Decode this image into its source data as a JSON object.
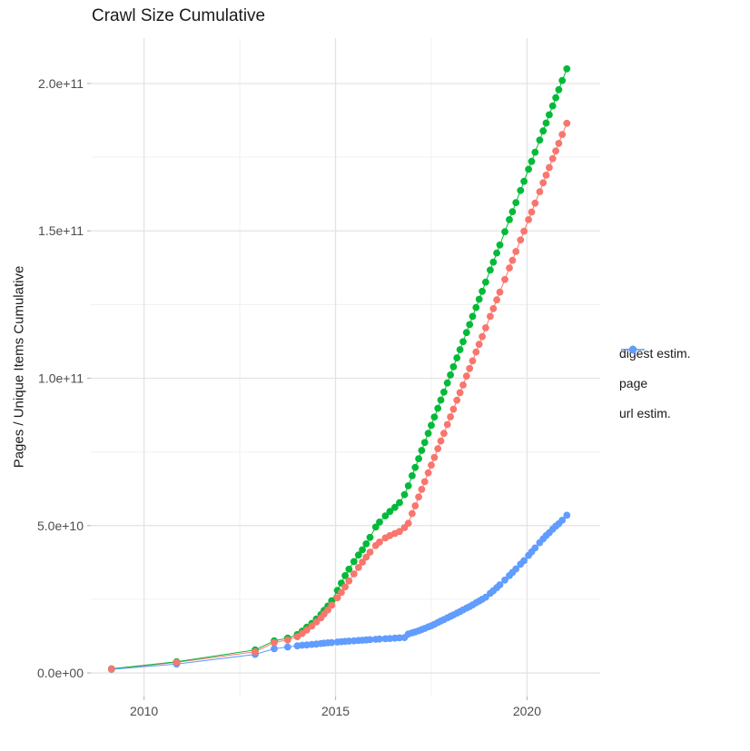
{
  "page": {
    "title": "Crawl Size Cumulative"
  },
  "chart_data": {
    "type": "line",
    "title": "Crawl Size Cumulative",
    "xlabel": "",
    "ylabel": "Pages / Unique Items Cumulative",
    "grid": true,
    "legend_position": "right",
    "value_unit_note": "y values stored in billions (1e9) of pages / unique items",
    "x_axis": {
      "lim": [
        2008.61,
        2021.91
      ],
      "major_ticks": [
        {
          "value": 2010,
          "label": "2010"
        },
        {
          "value": 2015,
          "label": "2015"
        },
        {
          "value": 2020,
          "label": "2020"
        }
      ],
      "minor_ticks": [
        2012.5,
        2017.5
      ]
    },
    "y_axis": {
      "lim_billions": [
        -8,
        215.4
      ],
      "major_ticks": [
        {
          "value_billions": 0,
          "label": "0.0e+00"
        },
        {
          "value_billions": 50,
          "label": "5.0e+10"
        },
        {
          "value_billions": 100,
          "label": "1.0e+11"
        },
        {
          "value_billions": 150,
          "label": "1.5e+11"
        },
        {
          "value_billions": 200,
          "label": "2.0e+11"
        }
      ],
      "minor_ticks_billions": [
        25,
        75,
        125,
        175
      ]
    },
    "colors": {
      "digest": "#F8766D",
      "page": "#00BA38",
      "url": "#619CFF"
    },
    "series": [
      {
        "name": "digest estim.",
        "color": "#F8766D",
        "points_year_billions": [
          [
            2009.15,
            1.3
          ],
          [
            2010.85,
            3.6
          ],
          [
            2012.9,
            7.2
          ],
          [
            2013.4,
            10.3
          ],
          [
            2013.75,
            11.2
          ],
          [
            2014.0,
            12.3
          ],
          [
            2014.13,
            13.4
          ],
          [
            2014.25,
            14.6
          ],
          [
            2014.38,
            15.9
          ],
          [
            2014.5,
            17.3
          ],
          [
            2014.62,
            18.7
          ],
          [
            2014.7,
            20.0
          ],
          [
            2014.8,
            21.4
          ],
          [
            2014.9,
            23.0
          ],
          [
            2015.05,
            25.5
          ],
          [
            2015.15,
            27.3
          ],
          [
            2015.25,
            29.2
          ],
          [
            2015.35,
            31.2
          ],
          [
            2015.48,
            33.6
          ],
          [
            2015.6,
            35.8
          ],
          [
            2015.7,
            37.6
          ],
          [
            2015.8,
            39.3
          ],
          [
            2015.9,
            41.0
          ],
          [
            2016.05,
            43.2
          ],
          [
            2016.15,
            44.4
          ],
          [
            2016.3,
            45.8
          ],
          [
            2016.42,
            46.6
          ],
          [
            2016.55,
            47.3
          ],
          [
            2016.67,
            48.0
          ],
          [
            2016.8,
            49.3
          ],
          [
            2016.9,
            50.8
          ],
          [
            2017.0,
            54.1
          ],
          [
            2017.08,
            56.7
          ],
          [
            2017.17,
            59.7
          ],
          [
            2017.25,
            62.3
          ],
          [
            2017.33,
            64.9
          ],
          [
            2017.42,
            67.9
          ],
          [
            2017.5,
            70.5
          ],
          [
            2017.58,
            73.1
          ],
          [
            2017.67,
            76.1
          ],
          [
            2017.75,
            78.7
          ],
          [
            2017.83,
            81.3
          ],
          [
            2017.92,
            84.3
          ],
          [
            2018.0,
            86.9
          ],
          [
            2018.08,
            89.5
          ],
          [
            2018.17,
            92.5
          ],
          [
            2018.25,
            95.1
          ],
          [
            2018.33,
            97.7
          ],
          [
            2018.42,
            100.7
          ],
          [
            2018.5,
            103.3
          ],
          [
            2018.58,
            105.9
          ],
          [
            2018.67,
            108.9
          ],
          [
            2018.75,
            111.5
          ],
          [
            2018.83,
            114.1
          ],
          [
            2018.92,
            117.1
          ],
          [
            2019.04,
            121.0
          ],
          [
            2019.12,
            123.6
          ],
          [
            2019.21,
            126.6
          ],
          [
            2019.29,
            129.2
          ],
          [
            2019.42,
            133.5
          ],
          [
            2019.54,
            137.4
          ],
          [
            2019.62,
            140.0
          ],
          [
            2019.71,
            143.0
          ],
          [
            2019.83,
            146.9
          ],
          [
            2019.92,
            149.9
          ],
          [
            2020.04,
            153.8
          ],
          [
            2020.12,
            156.4
          ],
          [
            2020.21,
            159.4
          ],
          [
            2020.33,
            163.3
          ],
          [
            2020.42,
            166.3
          ],
          [
            2020.5,
            168.9
          ],
          [
            2020.58,
            171.5
          ],
          [
            2020.67,
            174.5
          ],
          [
            2020.75,
            177.1
          ],
          [
            2020.83,
            179.7
          ],
          [
            2020.92,
            182.7
          ],
          [
            2021.04,
            186.5
          ]
        ]
      },
      {
        "name": "page",
        "color": "#00BA38",
        "points_year_billions": [
          [
            2009.15,
            1.4
          ],
          [
            2010.85,
            3.8
          ],
          [
            2012.9,
            7.8
          ],
          [
            2013.4,
            10.9
          ],
          [
            2013.75,
            11.8
          ],
          [
            2014.0,
            13.0
          ],
          [
            2014.13,
            14.2
          ],
          [
            2014.25,
            15.5
          ],
          [
            2014.38,
            16.8
          ],
          [
            2014.5,
            18.3
          ],
          [
            2014.62,
            19.8
          ],
          [
            2014.7,
            21.2
          ],
          [
            2014.8,
            22.7
          ],
          [
            2014.9,
            24.5
          ],
          [
            2015.05,
            28.0
          ],
          [
            2015.15,
            30.5
          ],
          [
            2015.25,
            33.0
          ],
          [
            2015.35,
            35.2
          ],
          [
            2015.48,
            37.8
          ],
          [
            2015.6,
            40.0
          ],
          [
            2015.7,
            41.8
          ],
          [
            2015.8,
            43.8
          ],
          [
            2015.9,
            46.0
          ],
          [
            2016.05,
            49.5
          ],
          [
            2016.15,
            51.2
          ],
          [
            2016.3,
            53.3
          ],
          [
            2016.42,
            54.8
          ],
          [
            2016.55,
            56.2
          ],
          [
            2016.67,
            57.8
          ],
          [
            2016.8,
            60.5
          ],
          [
            2016.9,
            63.5
          ],
          [
            2017.0,
            66.9
          ],
          [
            2017.08,
            69.7
          ],
          [
            2017.17,
            72.7
          ],
          [
            2017.25,
            75.5
          ],
          [
            2017.33,
            78.2
          ],
          [
            2017.42,
            81.3
          ],
          [
            2017.5,
            84.0
          ],
          [
            2017.58,
            86.8
          ],
          [
            2017.67,
            89.8
          ],
          [
            2017.75,
            92.6
          ],
          [
            2017.83,
            95.3
          ],
          [
            2017.92,
            98.4
          ],
          [
            2018.0,
            101.1
          ],
          [
            2018.08,
            103.9
          ],
          [
            2018.17,
            106.9
          ],
          [
            2018.25,
            109.7
          ],
          [
            2018.33,
            112.4
          ],
          [
            2018.42,
            115.5
          ],
          [
            2018.5,
            118.2
          ],
          [
            2018.58,
            121.0
          ],
          [
            2018.67,
            124.0
          ],
          [
            2018.75,
            126.8
          ],
          [
            2018.83,
            129.5
          ],
          [
            2018.92,
            132.6
          ],
          [
            2019.04,
            136.7
          ],
          [
            2019.12,
            139.4
          ],
          [
            2019.21,
            142.5
          ],
          [
            2019.29,
            145.2
          ],
          [
            2019.42,
            149.7
          ],
          [
            2019.54,
            153.8
          ],
          [
            2019.62,
            156.5
          ],
          [
            2019.71,
            159.6
          ],
          [
            2019.83,
            163.7
          ],
          [
            2019.92,
            166.8
          ],
          [
            2020.04,
            170.9
          ],
          [
            2020.12,
            173.6
          ],
          [
            2020.21,
            176.7
          ],
          [
            2020.33,
            180.8
          ],
          [
            2020.42,
            183.9
          ],
          [
            2020.5,
            186.6
          ],
          [
            2020.58,
            189.4
          ],
          [
            2020.67,
            192.4
          ],
          [
            2020.75,
            195.2
          ],
          [
            2020.83,
            197.9
          ],
          [
            2020.92,
            201.0
          ],
          [
            2021.04,
            205.0
          ]
        ]
      },
      {
        "name": "url estim.",
        "color": "#619CFF",
        "points_year_billions": [
          [
            2009.15,
            1.2
          ],
          [
            2010.85,
            3.0
          ],
          [
            2012.9,
            6.3
          ],
          [
            2013.4,
            8.2
          ],
          [
            2013.75,
            8.8
          ],
          [
            2014.0,
            9.2
          ],
          [
            2014.13,
            9.4
          ],
          [
            2014.25,
            9.5
          ],
          [
            2014.38,
            9.7
          ],
          [
            2014.5,
            9.8
          ],
          [
            2014.62,
            10.0
          ],
          [
            2014.7,
            10.1
          ],
          [
            2014.8,
            10.2
          ],
          [
            2014.9,
            10.3
          ],
          [
            2015.05,
            10.5
          ],
          [
            2015.15,
            10.6
          ],
          [
            2015.25,
            10.7
          ],
          [
            2015.35,
            10.8
          ],
          [
            2015.48,
            10.9
          ],
          [
            2015.6,
            11.0
          ],
          [
            2015.7,
            11.1
          ],
          [
            2015.8,
            11.2
          ],
          [
            2015.9,
            11.3
          ],
          [
            2016.05,
            11.4
          ],
          [
            2016.15,
            11.5
          ],
          [
            2016.3,
            11.6
          ],
          [
            2016.42,
            11.7
          ],
          [
            2016.55,
            11.8
          ],
          [
            2016.67,
            11.9
          ],
          [
            2016.8,
            12.0
          ],
          [
            2016.9,
            13.2
          ],
          [
            2017.0,
            13.6
          ],
          [
            2017.08,
            13.9
          ],
          [
            2017.17,
            14.3
          ],
          [
            2017.25,
            14.7
          ],
          [
            2017.33,
            15.1
          ],
          [
            2017.42,
            15.6
          ],
          [
            2017.5,
            16.0
          ],
          [
            2017.58,
            16.5
          ],
          [
            2017.67,
            17.1
          ],
          [
            2017.75,
            17.6
          ],
          [
            2017.83,
            18.1
          ],
          [
            2017.92,
            18.7
          ],
          [
            2018.0,
            19.2
          ],
          [
            2018.08,
            19.7
          ],
          [
            2018.17,
            20.3
          ],
          [
            2018.25,
            20.8
          ],
          [
            2018.33,
            21.4
          ],
          [
            2018.42,
            22.0
          ],
          [
            2018.5,
            22.5
          ],
          [
            2018.58,
            23.1
          ],
          [
            2018.67,
            23.8
          ],
          [
            2018.75,
            24.4
          ],
          [
            2018.83,
            25.0
          ],
          [
            2018.92,
            25.7
          ],
          [
            2019.04,
            27.0
          ],
          [
            2019.12,
            27.9
          ],
          [
            2019.21,
            28.9
          ],
          [
            2019.29,
            29.9
          ],
          [
            2019.42,
            31.5
          ],
          [
            2019.54,
            33.0
          ],
          [
            2019.62,
            34.1
          ],
          [
            2019.71,
            35.3
          ],
          [
            2019.83,
            36.9
          ],
          [
            2019.92,
            38.1
          ],
          [
            2020.04,
            39.9
          ],
          [
            2020.12,
            41.1
          ],
          [
            2020.21,
            42.4
          ],
          [
            2020.33,
            44.2
          ],
          [
            2020.42,
            45.5
          ],
          [
            2020.5,
            46.6
          ],
          [
            2020.58,
            47.6
          ],
          [
            2020.67,
            48.8
          ],
          [
            2020.75,
            49.8
          ],
          [
            2020.83,
            50.6
          ],
          [
            2020.92,
            51.8
          ],
          [
            2021.04,
            53.5
          ]
        ]
      }
    ],
    "point_draw_order": [
      2,
      1,
      0
    ]
  },
  "legend": {
    "items": [
      {
        "label": "digest estim."
      },
      {
        "label": "page"
      },
      {
        "label": "url estim."
      }
    ]
  },
  "style": {
    "grid_major_color": "#e3e3e3",
    "grid_minor_color": "#efefef",
    "tick_color": "#bbbbbb",
    "tick_label_color": "#4d4d4d",
    "text_color": "#1a1a1a"
  }
}
